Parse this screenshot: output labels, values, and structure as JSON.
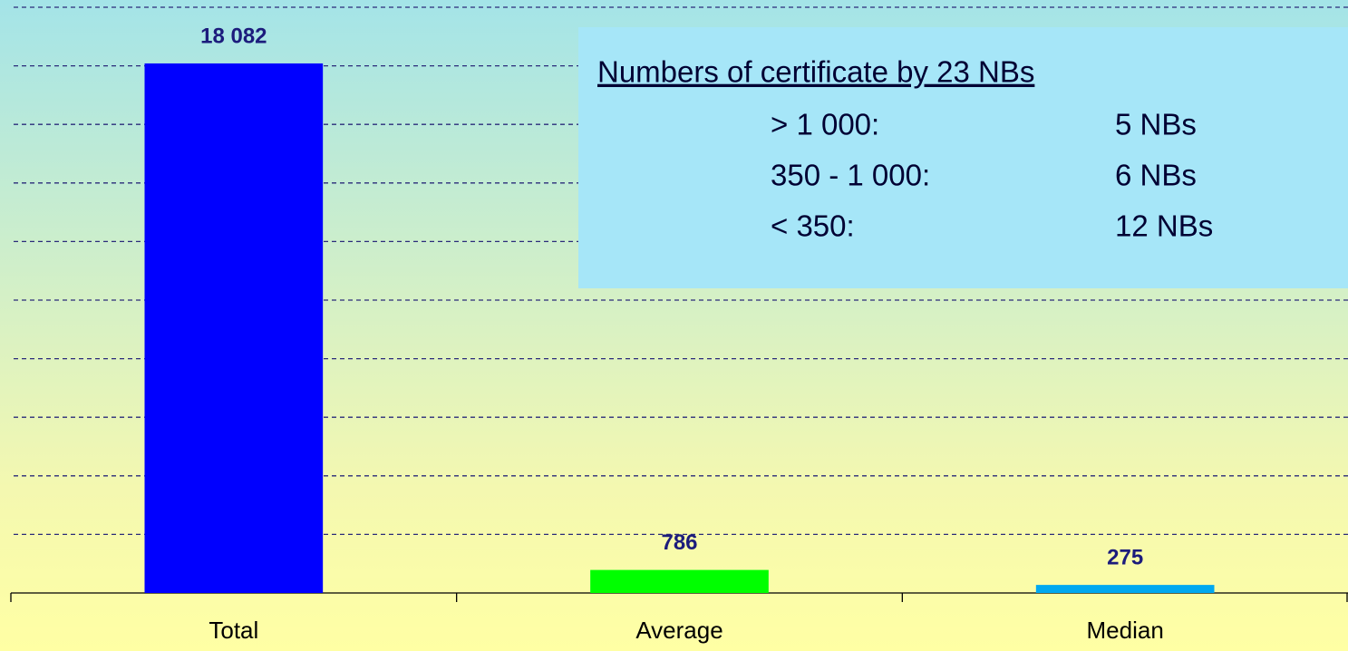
{
  "chart_data": {
    "type": "bar",
    "categories": [
      "Total",
      "Average",
      "Median"
    ],
    "values": [
      18082,
      786,
      275
    ],
    "value_labels": [
      "18 082",
      "786",
      "275"
    ],
    "colors": [
      "#0000ff",
      "#00ff00",
      "#00a8f0"
    ],
    "ylim": [
      0,
      20000
    ],
    "yticks": [
      0,
      2000,
      4000,
      6000,
      8000,
      10000,
      12000,
      14000,
      16000,
      18000,
      20000
    ],
    "grid": true,
    "annotation": {
      "title": "Numbers of certificate by 23 NBs",
      "rows": [
        [
          "> 1 000:",
          "5 NBs"
        ],
        [
          "350 - 1 000:",
          "6 NBs"
        ],
        [
          "< 350:",
          "12 NBs"
        ]
      ]
    }
  }
}
